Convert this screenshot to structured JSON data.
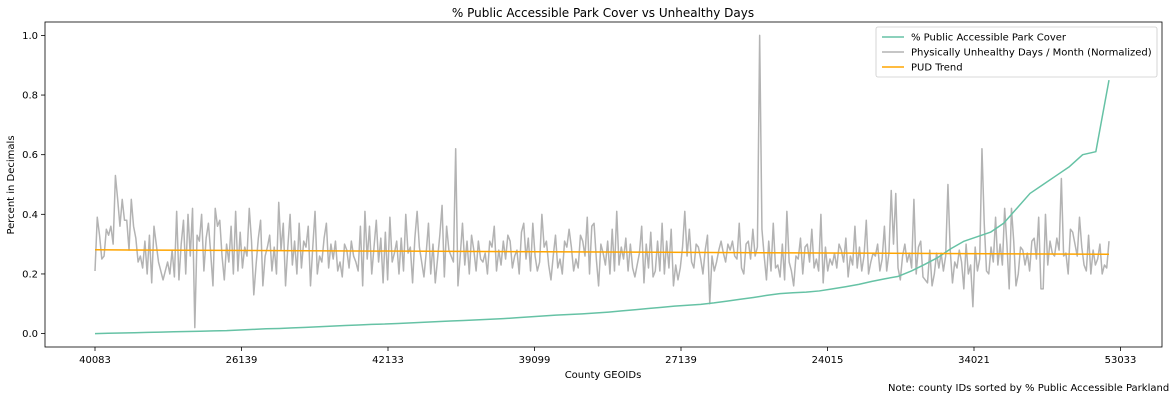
{
  "chart_data": {
    "type": "line",
    "title": "% Public Accessible Park Cover vs Unhealthy Days",
    "xlabel": "County GEOIDs",
    "ylabel": "Percent in Decimals",
    "x_ticks": [
      "40083",
      "26139",
      "42133",
      "39099",
      "27139",
      "24015",
      "34021",
      "53033"
    ],
    "ylim": [
      -0.045,
      1.045
    ],
    "y_ticks": [
      "0.0",
      "0.2",
      "0.4",
      "0.6",
      "0.8",
      "1.0"
    ],
    "grid": false,
    "legend_position": "top-right",
    "series": [
      {
        "name": "% Public Accessible Park Cover",
        "color": "#66c2a5",
        "values": [
          0.0,
          0.001,
          0.002,
          0.003,
          0.004,
          0.005,
          0.006,
          0.007,
          0.008,
          0.009,
          0.01,
          0.012,
          0.014,
          0.016,
          0.017,
          0.019,
          0.021,
          0.023,
          0.025,
          0.027,
          0.029,
          0.031,
          0.032,
          0.034,
          0.036,
          0.038,
          0.04,
          0.042,
          0.044,
          0.046,
          0.048,
          0.05,
          0.053,
          0.056,
          0.059,
          0.062,
          0.064,
          0.066,
          0.069,
          0.072,
          0.076,
          0.08,
          0.084,
          0.088,
          0.092,
          0.095,
          0.098,
          0.103,
          0.109,
          0.115,
          0.121,
          0.128,
          0.134,
          0.137,
          0.139,
          0.143,
          0.15,
          0.157,
          0.165,
          0.175,
          0.184,
          0.192,
          0.21,
          0.232,
          0.255,
          0.285,
          0.31,
          0.325,
          0.34,
          0.37,
          0.42,
          0.47,
          0.5,
          0.53,
          0.56,
          0.6,
          0.61,
          0.85
        ]
      },
      {
        "name": "Physically Unhealthy Days / Month (Normalized)",
        "color": "#b3b3b3",
        "values": [
          0.21,
          0.39,
          0.33,
          0.25,
          0.26,
          0.35,
          0.33,
          0.36,
          0.3,
          0.53,
          0.45,
          0.36,
          0.45,
          0.38,
          0.38,
          0.28,
          0.45,
          0.36,
          0.32,
          0.24,
          0.26,
          0.22,
          0.31,
          0.2,
          0.33,
          0.17,
          0.36,
          0.3,
          0.24,
          0.21,
          0.18,
          0.21,
          0.24,
          0.2,
          0.28,
          0.19,
          0.41,
          0.18,
          0.3,
          0.38,
          0.2,
          0.4,
          0.26,
          0.42,
          0.02,
          0.33,
          0.31,
          0.4,
          0.21,
          0.32,
          0.37,
          0.27,
          0.16,
          0.42,
          0.36,
          0.38,
          0.26,
          0.18,
          0.3,
          0.24,
          0.36,
          0.2,
          0.41,
          0.21,
          0.34,
          0.22,
          0.29,
          0.26,
          0.42,
          0.31,
          0.13,
          0.23,
          0.32,
          0.38,
          0.16,
          0.26,
          0.29,
          0.33,
          0.21,
          0.29,
          0.2,
          0.44,
          0.28,
          0.37,
          0.16,
          0.29,
          0.4,
          0.23,
          0.31,
          0.2,
          0.37,
          0.22,
          0.31,
          0.29,
          0.36,
          0.16,
          0.29,
          0.41,
          0.2,
          0.26,
          0.24,
          0.32,
          0.37,
          0.22,
          0.3,
          0.25,
          0.31,
          0.21,
          0.24,
          0.19,
          0.3,
          0.28,
          0.22,
          0.31,
          0.26,
          0.24,
          0.21,
          0.36,
          0.16,
          0.41,
          0.25,
          0.36,
          0.2,
          0.29,
          0.38,
          0.24,
          0.32,
          0.17,
          0.34,
          0.18,
          0.39,
          0.24,
          0.27,
          0.31,
          0.2,
          0.32,
          0.21,
          0.4,
          0.27,
          0.29,
          0.17,
          0.32,
          0.41,
          0.29,
          0.24,
          0.19,
          0.27,
          0.37,
          0.2,
          0.3,
          0.17,
          0.25,
          0.33,
          0.43,
          0.19,
          0.36,
          0.28,
          0.26,
          0.24,
          0.62,
          0.16,
          0.26,
          0.37,
          0.23,
          0.31,
          0.2,
          0.33,
          0.28,
          0.21,
          0.31,
          0.25,
          0.24,
          0.27,
          0.2,
          0.31,
          0.29,
          0.36,
          0.21,
          0.28,
          0.23,
          0.31,
          0.25,
          0.33,
          0.31,
          0.22,
          0.26,
          0.28,
          0.2,
          0.34,
          0.37,
          0.25,
          0.32,
          0.21,
          0.37,
          0.26,
          0.21,
          0.24,
          0.4,
          0.29,
          0.31,
          0.23,
          0.18,
          0.26,
          0.33,
          0.22,
          0.25,
          0.2,
          0.31,
          0.29,
          0.35,
          0.29,
          0.21,
          0.25,
          0.22,
          0.33,
          0.31,
          0.26,
          0.39,
          0.2,
          0.36,
          0.37,
          0.25,
          0.16,
          0.3,
          0.27,
          0.23,
          0.31,
          0.2,
          0.35,
          0.21,
          0.41,
          0.23,
          0.29,
          0.25,
          0.32,
          0.21,
          0.3,
          0.22,
          0.19,
          0.23,
          0.27,
          0.36,
          0.17,
          0.3,
          0.22,
          0.34,
          0.19,
          0.21,
          0.31,
          0.21,
          0.37,
          0.2,
          0.31,
          0.22,
          0.35,
          0.16,
          0.23,
          0.18,
          0.22,
          0.29,
          0.41,
          0.26,
          0.35,
          0.24,
          0.22,
          0.3,
          0.29,
          0.25,
          0.2,
          0.28,
          0.33,
          0.1,
          0.26,
          0.21,
          0.24,
          0.28,
          0.31,
          0.27,
          0.24,
          0.3,
          0.28,
          0.31,
          0.26,
          0.25,
          0.37,
          0.22,
          0.2,
          0.3,
          0.31,
          0.25,
          0.35,
          0.26,
          0.29,
          1.0,
          0.35,
          0.26,
          0.18,
          0.31,
          0.21,
          0.37,
          0.22,
          0.23,
          0.19,
          0.3,
          0.18,
          0.41,
          0.24,
          0.21,
          0.16,
          0.26,
          0.25,
          0.32,
          0.2,
          0.29,
          0.3,
          0.24,
          0.35,
          0.22,
          0.25,
          0.21,
          0.4,
          0.17,
          0.29,
          0.21,
          0.25,
          0.23,
          0.27,
          0.22,
          0.3,
          0.28,
          0.24,
          0.32,
          0.19,
          0.26,
          0.23,
          0.36,
          0.22,
          0.29,
          0.21,
          0.26,
          0.38,
          0.2,
          0.24,
          0.27,
          0.26,
          0.3,
          0.21,
          0.25,
          0.36,
          0.21,
          0.27,
          0.48,
          0.3,
          0.47,
          0.22,
          0.18,
          0.26,
          0.3,
          0.24,
          0.27,
          0.22,
          0.45,
          0.2,
          0.29,
          0.31,
          0.19,
          0.18,
          0.17,
          0.28,
          0.16,
          0.2,
          0.27,
          0.22,
          0.27,
          0.21,
          0.26,
          0.5,
          0.28,
          0.17,
          0.24,
          0.22,
          0.28,
          0.24,
          0.15,
          0.3,
          0.2,
          0.23,
          0.09,
          0.29,
          0.21,
          0.25,
          0.62,
          0.37,
          0.21,
          0.2,
          0.29,
          0.24,
          0.39,
          0.23,
          0.3,
          0.23,
          0.42,
          0.3,
          0.15,
          0.42,
          0.31,
          0.16,
          0.2,
          0.29,
          0.28,
          0.23,
          0.27,
          0.21,
          0.31,
          0.32,
          0.25,
          0.39,
          0.15,
          0.15,
          0.4,
          0.23,
          0.31,
          0.27,
          0.26,
          0.32,
          0.28,
          0.52,
          0.26,
          0.27,
          0.2,
          0.35,
          0.34,
          0.3,
          0.26,
          0.39,
          0.29,
          0.23,
          0.21,
          0.33,
          0.2,
          0.28,
          0.23,
          0.25,
          0.3,
          0.2,
          0.23,
          0.22,
          0.31
        ]
      },
      {
        "name": "PUD Trend",
        "color": "#ffa500",
        "values": [
          0.281,
          0.266
        ]
      }
    ]
  },
  "note": "Note: county IDs sorted by % Public Accessible Parkland"
}
